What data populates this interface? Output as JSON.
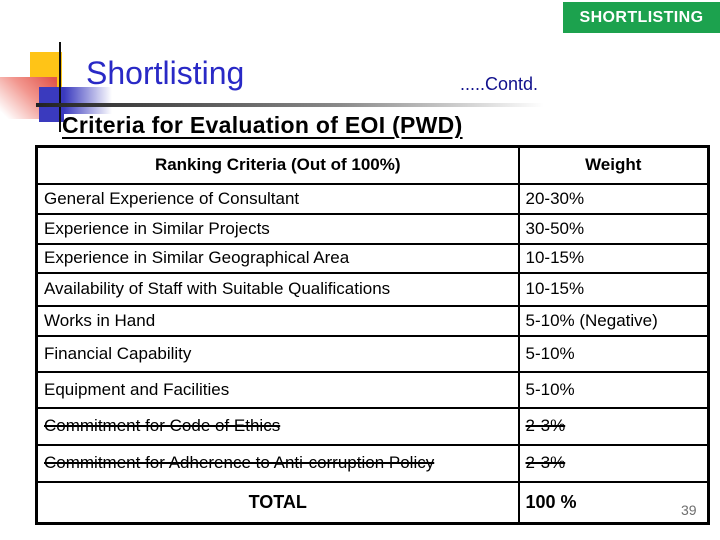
{
  "banner": {
    "label": "SHORTLISTING",
    "bg_color": "#1CA24E",
    "text_color": "#FFFFFF"
  },
  "title": {
    "text": "Shortlisting",
    "color": "#2929C6"
  },
  "contd": {
    "text": ".....Contd.",
    "color": "#10108C"
  },
  "heading": {
    "text": "Criteria for Evaluation of EOI (PWD)"
  },
  "table": {
    "headers": [
      "Ranking Criteria (Out of 100%)",
      "Weight"
    ],
    "rows": [
      {
        "criteria": "General Experience of Consultant",
        "weight": "20-30%",
        "strike": false
      },
      {
        "criteria": "Experience in Similar Projects",
        "weight": "30-50%",
        "strike": false
      },
      {
        "criteria": "Experience in Similar Geographical Area",
        "weight": "10-15%",
        "strike": false
      },
      {
        "criteria": "Availability of Staff with Suitable Qualifications",
        "weight": "10-15%",
        "strike": false
      },
      {
        "criteria": "Works in Hand",
        "weight": "5-10% (Negative)",
        "strike": false
      },
      {
        "criteria": "Financial Capability",
        "weight": "5-10%",
        "strike": false
      },
      {
        "criteria": "Equipment and Facilities",
        "weight": "5-10%",
        "strike": false
      },
      {
        "criteria": "Commitment for Code of Ethics",
        "weight": "2-3%",
        "strike": true
      },
      {
        "criteria": "Commitment for Adherence to Anti-corruption Policy",
        "weight": "2-3%",
        "strike": true
      }
    ],
    "total": {
      "label": "TOTAL",
      "value": "100 %"
    }
  },
  "page_number": "39"
}
